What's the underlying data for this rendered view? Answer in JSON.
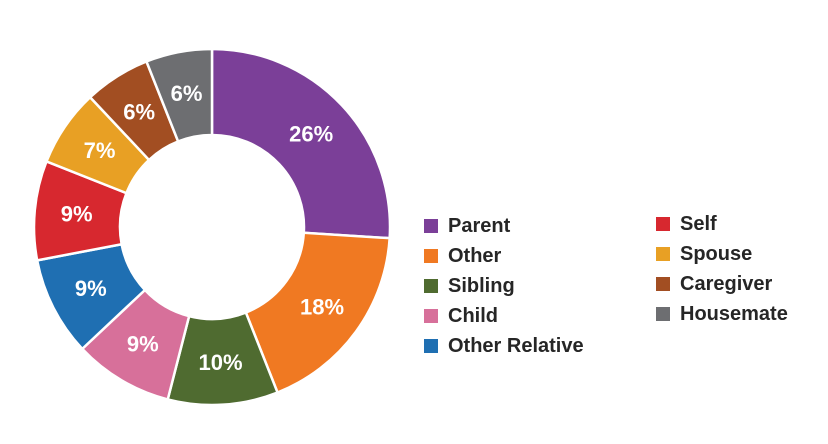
{
  "chart_data": {
    "type": "pie",
    "donut": true,
    "slices": [
      {
        "label": "Parent",
        "value": 26,
        "display": "26%",
        "color": "#7B3F98"
      },
      {
        "label": "Other",
        "value": 18,
        "display": "18%",
        "color": "#F07922"
      },
      {
        "label": "Sibling",
        "value": 10,
        "display": "10%",
        "color": "#4F6B30"
      },
      {
        "label": "Child",
        "value": 9,
        "display": "9%",
        "color": "#D7709A"
      },
      {
        "label": "Other Relative",
        "value": 9,
        "display": "9%",
        "color": "#1F6FB2"
      },
      {
        "label": "Self",
        "value": 9,
        "display": "9%",
        "color": "#D7282F"
      },
      {
        "label": "Spouse",
        "value": 7,
        "display": "7%",
        "color": "#E8A024"
      },
      {
        "label": "Caregiver",
        "value": 6,
        "display": "6%",
        "color": "#A24E22"
      },
      {
        "label": "Housemate",
        "value": 6,
        "display": "6%",
        "color": "#6D6E71"
      }
    ],
    "legend": {
      "placement": "right",
      "columns": [
        [
          "Parent",
          "Other",
          "Sibling",
          "Child",
          "Other Relative"
        ],
        [
          "Self",
          "Spouse",
          "Caregiver",
          "Housemate"
        ]
      ]
    }
  }
}
